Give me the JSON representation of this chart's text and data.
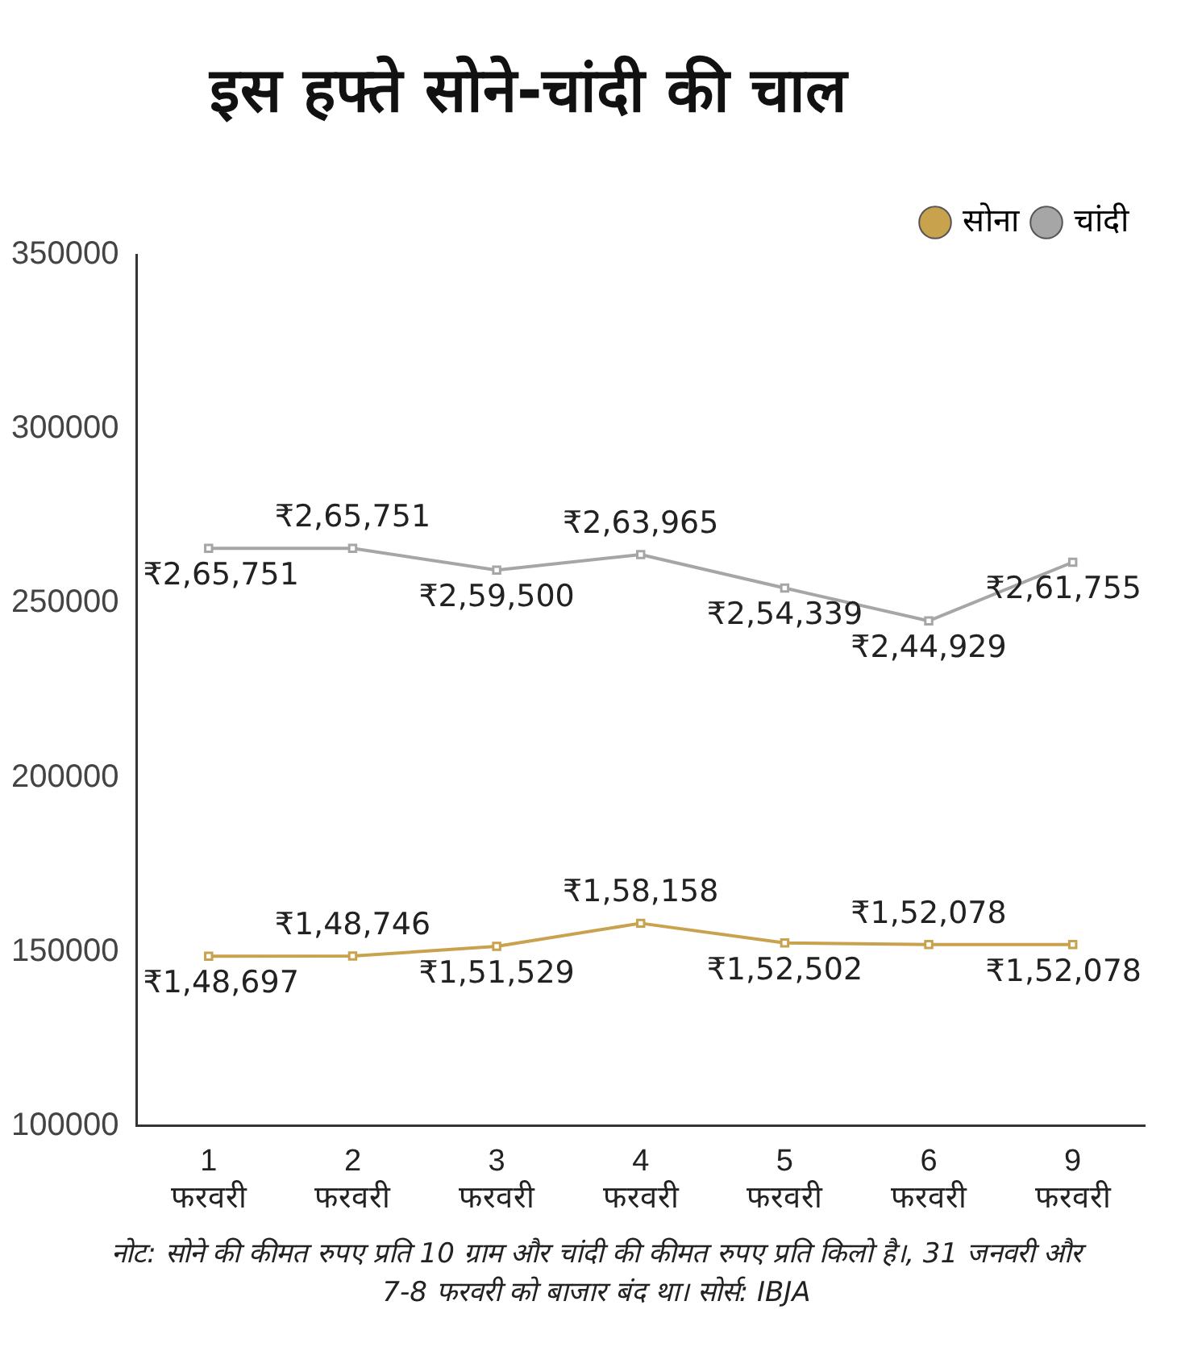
{
  "chart_data": {
    "type": "line",
    "title": "इस हफ्ते सोने-चांदी की चाल",
    "categories": [
      "1 फरवरी",
      "2 फरवरी",
      "3 फरवरी",
      "4 फरवरी",
      "5 फरवरी",
      "6 फरवरी",
      "9 फरवरी"
    ],
    "series": [
      {
        "name": "सोना",
        "color": "#c9a24e",
        "values": [
          148697,
          148746,
          151529,
          158158,
          152502,
          152078,
          152078
        ],
        "value_labels": [
          "₹1,48,697",
          "₹1,48,746",
          "₹1,51,529",
          "₹1,58,158",
          "₹1,52,502",
          "₹1,52,078",
          "₹1,52,078"
        ]
      },
      {
        "name": "चांदी",
        "color": "#a6a6a6",
        "values": [
          265751,
          265751,
          259500,
          263965,
          254339,
          244929,
          261755
        ],
        "value_labels": [
          "₹2,65,751",
          "₹2,65,751",
          "₹2,59,500",
          "₹2,63,965",
          "₹2,54,339",
          "₹2,44,929",
          "₹2,61,755"
        ]
      }
    ],
    "ylim": [
      100000,
      350000
    ],
    "yticks": [
      100000,
      150000,
      200000,
      250000,
      300000,
      350000
    ],
    "grid": false,
    "legend": "top right",
    "marker": "square",
    "line_style": "solid",
    "annotations": [
      "नोट: सोने की कीमत रुपए प्रति 10 ग्राम और चांदी की कीमत रुपए प्रति किलो है।, 31 जनवरी और 7-8 फरवरी को बाजार बंद था। सोर्स: IBJA"
    ]
  }
}
